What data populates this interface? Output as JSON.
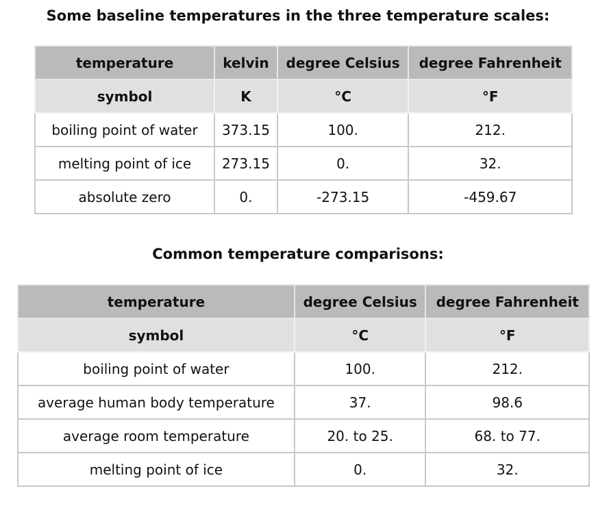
{
  "tables": [
    {
      "title": "Some baseline temperatures in the three temperature scales:",
      "rows": [
        [
          "temperature",
          "kelvin",
          "degree Celsius",
          "degree Fahrenheit"
        ],
        [
          "symbol",
          "K",
          "°C",
          "°F"
        ],
        [
          "boiling point of water",
          "373.15",
          "100.",
          "212."
        ],
        [
          "melting point of ice",
          "273.15",
          "0.",
          "32."
        ],
        [
          "absolute zero",
          "0.",
          "-273.15",
          "-459.67"
        ]
      ]
    },
    {
      "title": "Common temperature comparisons:",
      "rows": [
        [
          "temperature",
          "degree Celsius",
          "degree Fahrenheit"
        ],
        [
          "symbol",
          "°C",
          "°F"
        ],
        [
          "boiling point of water",
          "100.",
          "212."
        ],
        [
          "average human body temperature",
          "37.",
          "98.6"
        ],
        [
          "average room temperature",
          "20. to 25.",
          "68. to 77."
        ],
        [
          "melting point of ice",
          "0.",
          "32."
        ]
      ]
    }
  ]
}
